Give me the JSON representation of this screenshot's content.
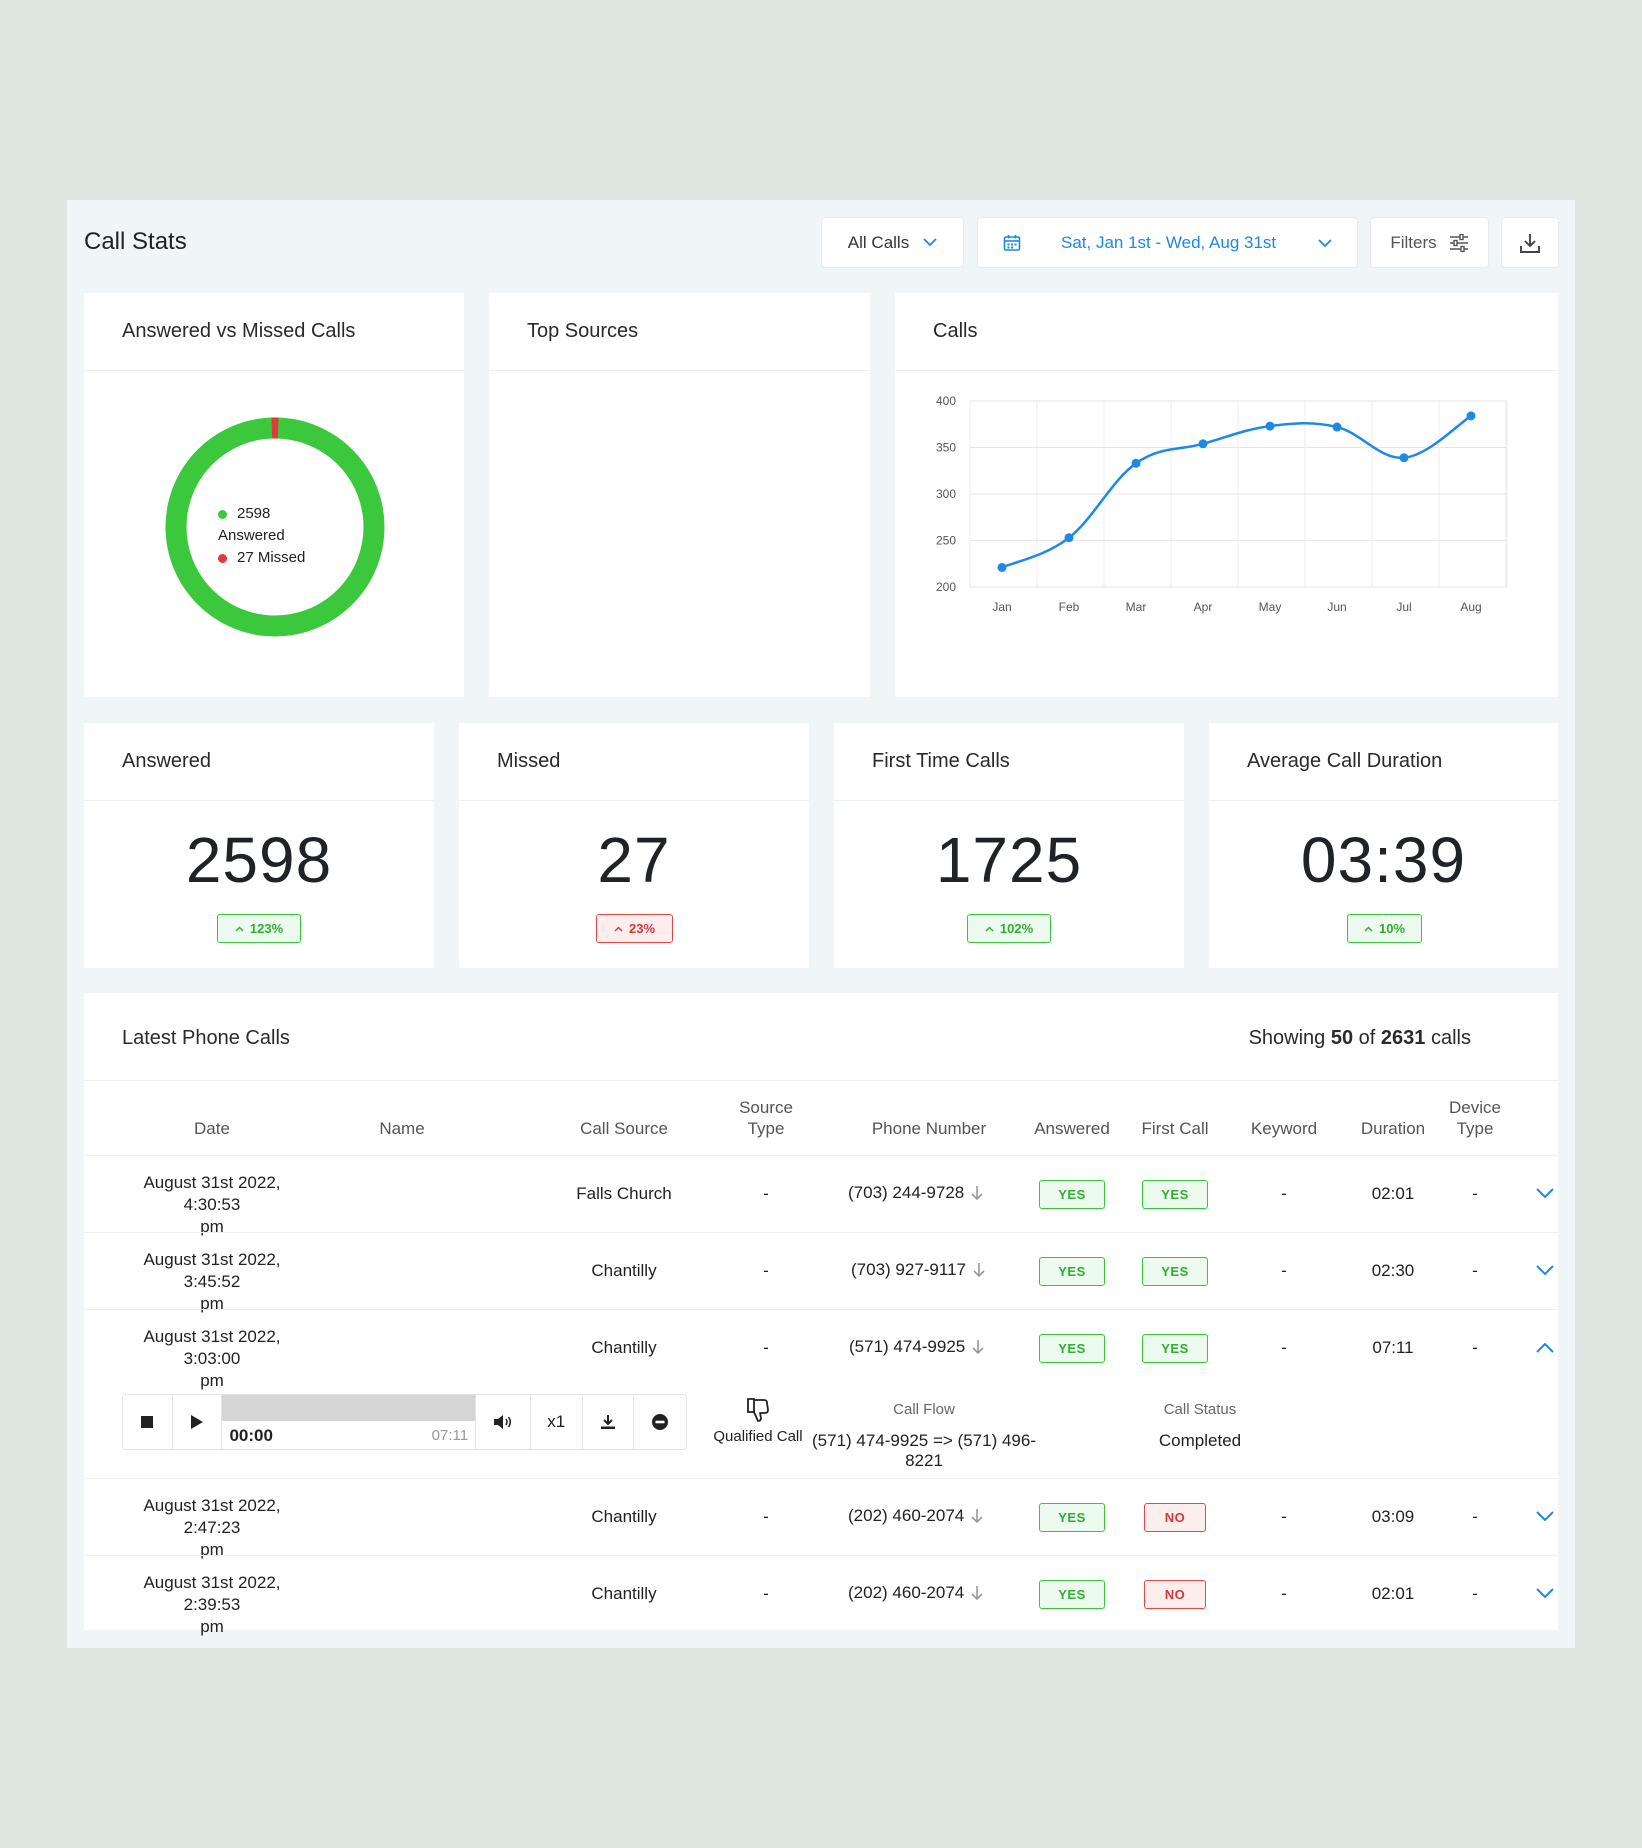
{
  "header": {
    "title": "Call Stats",
    "all_calls": "All Calls",
    "date_range": "Sat, Jan 1st - Wed, Aug 31st",
    "filters": "Filters"
  },
  "answered_vs_missed": {
    "title": "Answered vs Missed Calls",
    "answered_value": "2598",
    "answered_label": "Answered",
    "missed_label": "27 Missed",
    "answered_count": 2598,
    "missed_count": 27,
    "colors": {
      "answered": "#3cc83c",
      "missed": "#e03a3a"
    }
  },
  "top_sources": {
    "title": "Top Sources"
  },
  "calls_chart": {
    "title": "Calls"
  },
  "chart_data": {
    "type": "line",
    "categories": [
      "Jan",
      "Feb",
      "Mar",
      "Apr",
      "May",
      "Jun",
      "Jul",
      "Aug"
    ],
    "series": [
      {
        "values": [
          221,
          253,
          333,
          354,
          373,
          372,
          339,
          384
        ]
      }
    ],
    "ylim": [
      200,
      400
    ],
    "yticks": [
      "400",
      "350",
      "300",
      "250",
      "200"
    ],
    "grid": true,
    "color": "#1e88e5"
  },
  "stats": [
    {
      "label": "Answered",
      "value": "2598",
      "change": "123%",
      "direction": "up"
    },
    {
      "label": "Missed",
      "value": "27",
      "change": "23%",
      "direction": "down"
    },
    {
      "label": "First Time Calls",
      "value": "1725",
      "change": "102%",
      "direction": "up"
    },
    {
      "label": "Average Call Duration",
      "value": "03:39",
      "change": "10%",
      "direction": "up"
    }
  ],
  "calls_table": {
    "title": "Latest Phone Calls",
    "showing_prefix": "Showing",
    "showing_count": "50",
    "showing_of": "of",
    "showing_total": "2631",
    "showing_suffix": "calls",
    "columns": {
      "date": "Date",
      "name": "Name",
      "call_source": "Call Source",
      "source_type_1": "Source",
      "source_type_2": "Type",
      "phone_number": "Phone Number",
      "answered": "Answered",
      "first_call": "First Call",
      "keyword": "Keyword",
      "duration": "Duration",
      "device_type_1": "Device",
      "device_type_2": "Type"
    },
    "rows": [
      {
        "date_1": "August 31st 2022, 4:30:53",
        "date_2": "pm",
        "name": "",
        "source": "Falls Church",
        "source_type": "-",
        "phone": "(703) 244-9728",
        "answered": "YES",
        "first_call": "YES",
        "keyword": "-",
        "duration": "02:01",
        "device": "-"
      },
      {
        "date_1": "August 31st 2022, 3:45:52",
        "date_2": "pm",
        "name": "",
        "source": "Chantilly",
        "source_type": "-",
        "phone": "(703) 927-9117",
        "answered": "YES",
        "first_call": "YES",
        "keyword": "-",
        "duration": "02:30",
        "device": "-"
      },
      {
        "date_1": "August 31st 2022, 3:03:00",
        "date_2": "pm",
        "name": "",
        "source": "Chantilly",
        "source_type": "-",
        "phone": "(571) 474-9925",
        "answered": "YES",
        "first_call": "YES",
        "keyword": "-",
        "duration": "07:11",
        "device": "-"
      },
      {
        "date_1": "August 31st 2022, 2:47:23",
        "date_2": "pm",
        "name": "",
        "source": "Chantilly",
        "source_type": "-",
        "phone": "(202) 460-2074",
        "answered": "YES",
        "first_call": "NO",
        "keyword": "-",
        "duration": "03:09",
        "device": "-"
      },
      {
        "date_1": "August 31st 2022, 2:39:53",
        "date_2": "pm",
        "name": "",
        "source": "Chantilly",
        "source_type": "-",
        "phone": "(202) 460-2074",
        "answered": "YES",
        "first_call": "NO",
        "keyword": "-",
        "duration": "02:01",
        "device": "-"
      }
    ],
    "expanded": {
      "current_time": "00:00",
      "total_time": "07:11",
      "progress": 0,
      "speed": "x1",
      "qualified_label": "Qualified Call",
      "call_flow_label": "Call Flow",
      "call_flow_value": "(571) 474-9925 => (571) 496-8221",
      "call_status_label": "Call Status",
      "call_status_value": "Completed"
    }
  }
}
